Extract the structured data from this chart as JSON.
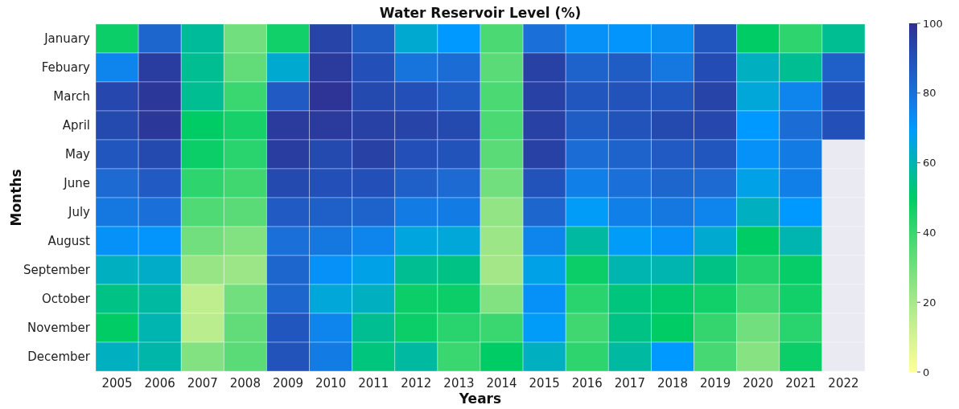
{
  "chart_data": {
    "type": "heatmap",
    "title": "Water Reservoir Level (%)",
    "xlabel": "Years",
    "ylabel": "Months",
    "categories": [
      "2005",
      "2006",
      "2007",
      "2008",
      "2009",
      "2010",
      "2011",
      "2012",
      "2013",
      "2014",
      "2015",
      "2016",
      "2017",
      "2018",
      "2019",
      "2020",
      "2021",
      "2022"
    ],
    "y_categories": [
      "January",
      "Febuary",
      "March",
      "April",
      "May",
      "June",
      "July",
      "August",
      "September",
      "October",
      "November",
      "December"
    ],
    "cells": [
      [
        48,
        83,
        57,
        30,
        47,
        94,
        86,
        64,
        70,
        37,
        80,
        72,
        71,
        73,
        88,
        50,
        42,
        56
      ],
      [
        75,
        96,
        56,
        33,
        64,
        97,
        90,
        79,
        81,
        34,
        95,
        84,
        86,
        78,
        91,
        62,
        56,
        85
      ],
      [
        93,
        98,
        56,
        40,
        87,
        99,
        92,
        90,
        86,
        37,
        95,
        88,
        89,
        88,
        94,
        65,
        75,
        90
      ],
      [
        92,
        98,
        50,
        46,
        97,
        97,
        95,
        94,
        92,
        37,
        95,
        86,
        89,
        92,
        93,
        70,
        81,
        90
      ],
      [
        88,
        92,
        48,
        43,
        96,
        92,
        95,
        90,
        89,
        34,
        95,
        81,
        84,
        87,
        88,
        72,
        77,
        null
      ],
      [
        82,
        87,
        42,
        39,
        92,
        90,
        90,
        85,
        82,
        30,
        89,
        76,
        80,
        83,
        82,
        67,
        76,
        null
      ],
      [
        78,
        80,
        36,
        34,
        87,
        85,
        84,
        77,
        77,
        24,
        83,
        69,
        76,
        78,
        75,
        62,
        70,
        null
      ],
      [
        72,
        71,
        30,
        27,
        80,
        78,
        75,
        66,
        65,
        22,
        75,
        58,
        69,
        72,
        64,
        50,
        60,
        null
      ],
      [
        62,
        63,
        23,
        22,
        83,
        72,
        67,
        56,
        54,
        21,
        67,
        48,
        60,
        60,
        54,
        44,
        49,
        null
      ],
      [
        54,
        58,
        15,
        30,
        83,
        65,
        62,
        48,
        48,
        27,
        72,
        43,
        53,
        51,
        47,
        38,
        47,
        null
      ],
      [
        50,
        60,
        16,
        33,
        88,
        75,
        56,
        48,
        43,
        40,
        69,
        39,
        54,
        50,
        41,
        30,
        43,
        null
      ],
      [
        62,
        59,
        27,
        34,
        89,
        77,
        53,
        58,
        40,
        50,
        62,
        42,
        58,
        70,
        38,
        26,
        48,
        null
      ]
    ],
    "clim": [
      0,
      100
    ],
    "cticks": [
      0,
      20,
      40,
      60,
      80,
      100
    ]
  }
}
